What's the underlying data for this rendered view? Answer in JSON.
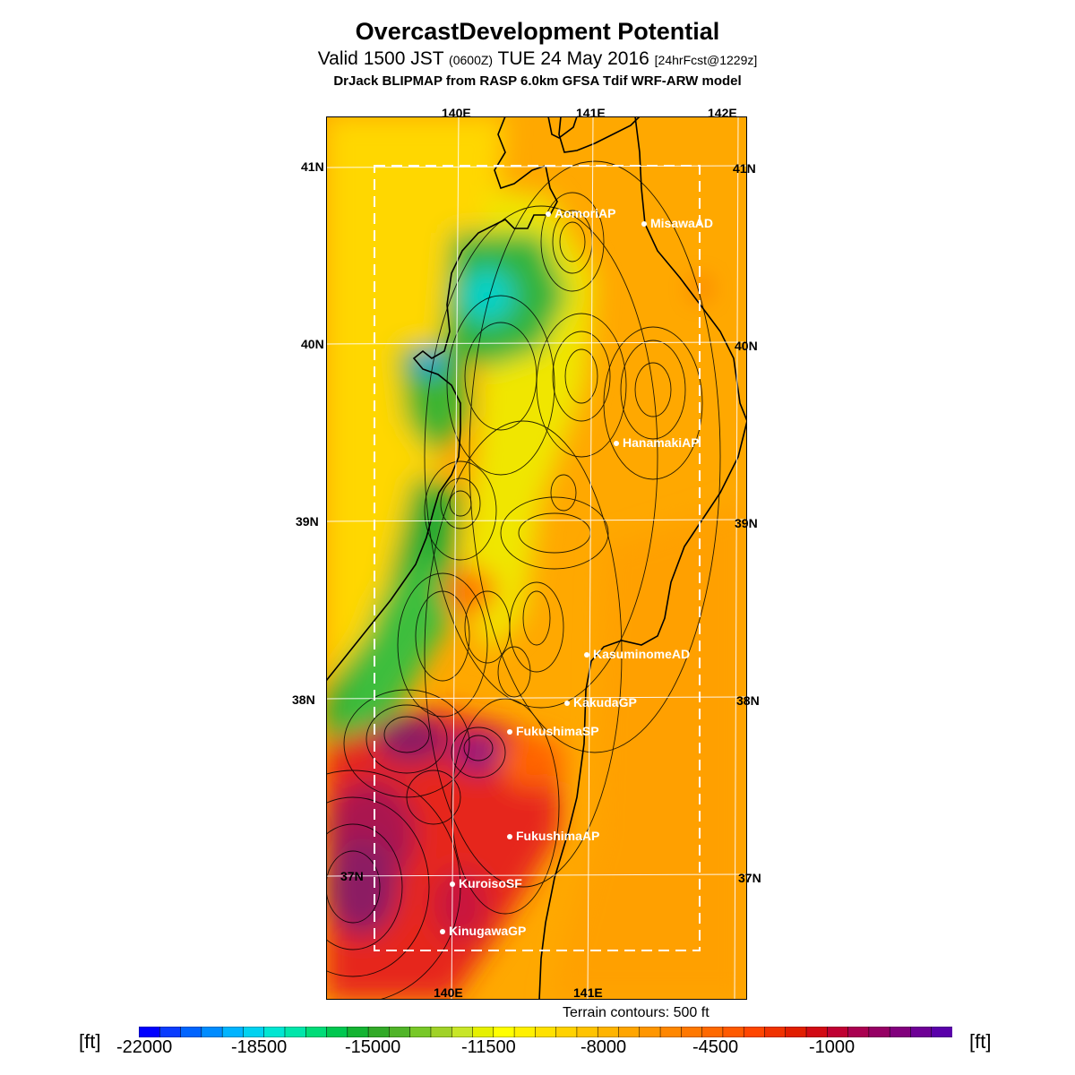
{
  "title": "OvercastDevelopment Potential",
  "subtitle_main": "Valid 1500 JST",
  "subtitle_small": "(0600Z)",
  "subtitle_date": "TUE 24 May 2016",
  "subtitle_fcst": "[24hrFcst@1229z]",
  "model_line": "DrJack BLIPMAP from RASP 6.0km GFSA Tdif WRF-ARW model",
  "lon_labels": [
    "140E",
    "141E",
    "142E"
  ],
  "lat_labels": [
    "41N",
    "40N",
    "39N",
    "38N",
    "37N"
  ],
  "stations": [
    {
      "name": "AomoriAP"
    },
    {
      "name": "MisawaAD"
    },
    {
      "name": "HanamakiAP"
    },
    {
      "name": "KasuminomeAD"
    },
    {
      "name": "KakudaGP"
    },
    {
      "name": "FukushimaSP"
    },
    {
      "name": "FukushimaAP"
    },
    {
      "name": "KuroisoSF"
    },
    {
      "name": "KinugawaGP"
    }
  ],
  "terrain_note": "Terrain contours: 500 ft",
  "colorbar": {
    "unit": "[ft]",
    "tick_labels": [
      "-22000",
      "-18500",
      "-15000",
      "-11500",
      "-8000",
      "-4500",
      "-1000"
    ],
    "colors": [
      "#0000ff",
      "#0a3cff",
      "#0064ff",
      "#008cff",
      "#00b4ff",
      "#00d2f0",
      "#00e6d2",
      "#00e6aa",
      "#00dc78",
      "#00c850",
      "#14b432",
      "#32aa28",
      "#50b428",
      "#78c828",
      "#a0d228",
      "#c8e628",
      "#e6f000",
      "#ffff00",
      "#fff000",
      "#ffe100",
      "#ffd200",
      "#ffc300",
      "#ffb400",
      "#ffa500",
      "#ff9600",
      "#ff8700",
      "#ff7800",
      "#ff6900",
      "#ff5a00",
      "#ff4600",
      "#f03200",
      "#e11e00",
      "#d20a14",
      "#c00032",
      "#aa0050",
      "#960064",
      "#82007d",
      "#6e0096",
      "#5a00aa"
    ]
  },
  "map_colors": {
    "yellow": "#ffd700",
    "orange": "#ffa800",
    "dark_orange": "#ff8c00",
    "green": "#3cb432",
    "cyan": "#00d2c8",
    "red": "#e6281e",
    "purple": "#8c1e64"
  }
}
